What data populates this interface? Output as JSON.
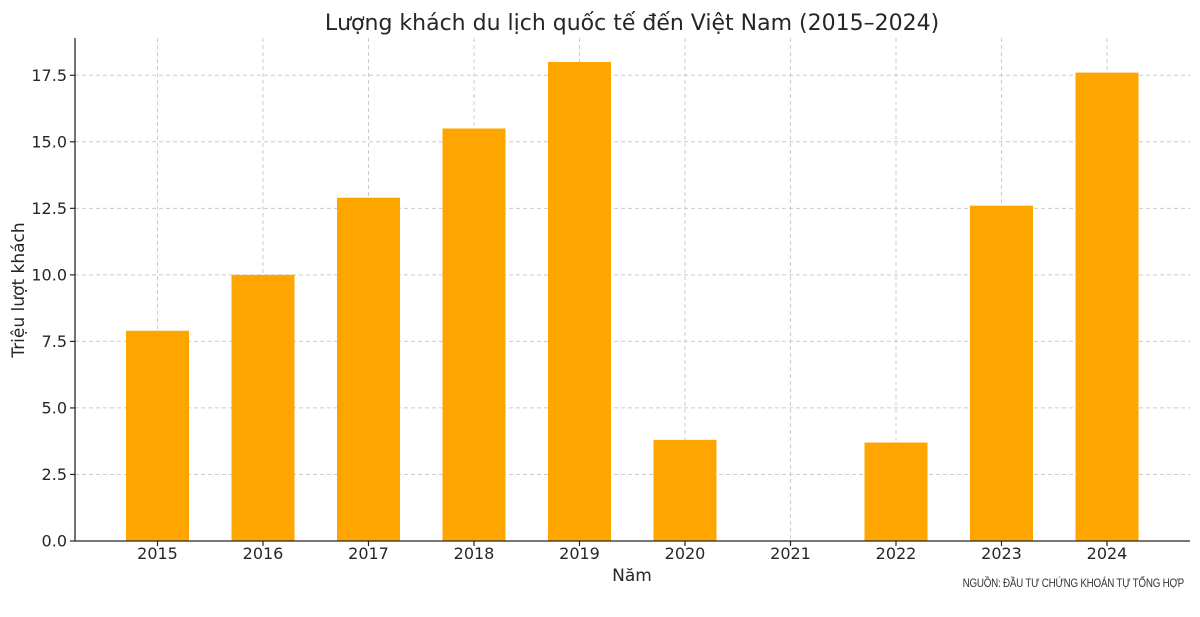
{
  "chart_data": {
    "type": "bar",
    "title": "Lượng khách du lịch quốc tế đến Việt Nam (2015–2024)",
    "xlabel": "Năm",
    "ylabel": "Triệu lượt khách",
    "categories": [
      "2015",
      "2016",
      "2017",
      "2018",
      "2019",
      "2020",
      "2021",
      "2022",
      "2023",
      "2024"
    ],
    "values": [
      7.9,
      10.0,
      12.9,
      15.5,
      18.0,
      3.8,
      0.0,
      3.7,
      12.6,
      17.6
    ],
    "ylim": [
      0,
      18.9
    ],
    "yticks": [
      "0.0",
      "2.5",
      "5.0",
      "7.5",
      "10.0",
      "12.5",
      "15.0",
      "17.5"
    ],
    "bar_color": "#FFA500",
    "grid": true
  },
  "source_note": "NGUỒN: ĐẦU TƯ CHỨNG KHOÁN TỰ TỔNG HỢP"
}
